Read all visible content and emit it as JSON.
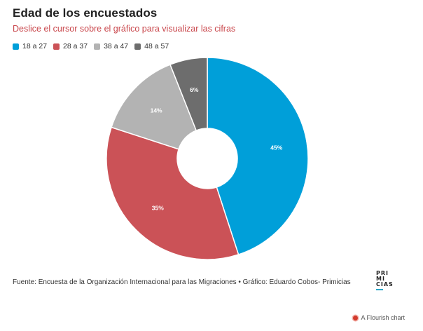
{
  "header": {
    "title": "Edad de los encuestados",
    "subtitle": "Deslice el cursor sobre el gráfico para visualizar las cifras"
  },
  "chart_data": {
    "type": "pie",
    "variant": "donut",
    "title": "Edad de los encuestados",
    "categories": [
      "18 a 27",
      "28 a 37",
      "38 a 47",
      "48 a 57"
    ],
    "values": [
      45,
      35,
      14,
      6
    ],
    "value_labels": [
      "45%",
      "35%",
      "14%",
      "6%"
    ],
    "colors": [
      "#009fd9",
      "#cb5257",
      "#b3b3b3",
      "#6d6d6d"
    ],
    "legend": "top-left"
  },
  "footer": {
    "source": "Fuente: Encuesta de la Organización Internacional para las Migraciones • Gráfico: Eduardo Cobos- Primicias",
    "logo_lines": [
      "PRI",
      "MI",
      "CIAS"
    ],
    "flourish_label": "A Flourish chart"
  }
}
